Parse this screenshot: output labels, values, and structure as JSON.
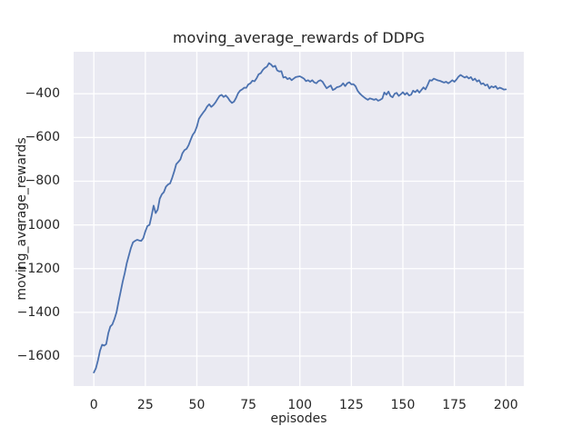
{
  "chart_data": {
    "type": "line",
    "title": "moving_average_rewards of DDPG",
    "xlabel": "episodes",
    "ylabel": "moving_average_rewards",
    "x_ticks": [
      0,
      25,
      50,
      75,
      100,
      125,
      150,
      175,
      200
    ],
    "y_ticks": [
      -400,
      -600,
      -800,
      -1000,
      -1200,
      -1400,
      -1600
    ],
    "xlim": [
      -9.8,
      208.7
    ],
    "ylim": [
      -1737,
      -208
    ],
    "grid": true,
    "legend_position": "none",
    "colors": {
      "plot_background": "#eaeaf2",
      "grid": "#ffffff",
      "line": "#4c72b0",
      "text": "#262626",
      "figure_background": "#ffffff"
    },
    "series": [
      {
        "name": "moving_average_rewards",
        "x_start": 0,
        "x_step": 1,
        "values": [
          -1675,
          -1655,
          -1620,
          -1575,
          -1548,
          -1552,
          -1545,
          -1495,
          -1465,
          -1455,
          -1430,
          -1400,
          -1350,
          -1305,
          -1260,
          -1220,
          -1175,
          -1140,
          -1105,
          -1080,
          -1073,
          -1068,
          -1071,
          -1073,
          -1060,
          -1030,
          -1005,
          -1000,
          -960,
          -912,
          -946,
          -930,
          -880,
          -860,
          -850,
          -825,
          -815,
          -810,
          -785,
          -755,
          -722,
          -712,
          -700,
          -672,
          -658,
          -652,
          -635,
          -610,
          -588,
          -575,
          -550,
          -515,
          -500,
          -487,
          -475,
          -458,
          -448,
          -460,
          -452,
          -440,
          -425,
          -410,
          -405,
          -415,
          -408,
          -418,
          -432,
          -442,
          -436,
          -420,
          -398,
          -386,
          -380,
          -372,
          -373,
          -357,
          -352,
          -340,
          -343,
          -329,
          -311,
          -306,
          -291,
          -282,
          -276,
          -260,
          -266,
          -277,
          -272,
          -293,
          -298,
          -297,
          -326,
          -323,
          -333,
          -328,
          -338,
          -331,
          -324,
          -322,
          -320,
          -325,
          -331,
          -342,
          -338,
          -345,
          -338,
          -348,
          -352,
          -342,
          -338,
          -345,
          -360,
          -375,
          -368,
          -362,
          -383,
          -378,
          -370,
          -368,
          -363,
          -352,
          -365,
          -352,
          -347,
          -357,
          -356,
          -365,
          -386,
          -398,
          -407,
          -415,
          -422,
          -428,
          -421,
          -424,
          -428,
          -424,
          -432,
          -428,
          -422,
          -394,
          -404,
          -390,
          -410,
          -416,
          -400,
          -396,
          -410,
          -402,
          -393,
          -404,
          -396,
          -408,
          -404,
          -386,
          -393,
          -383,
          -395,
          -383,
          -371,
          -380,
          -360,
          -338,
          -340,
          -331,
          -335,
          -339,
          -341,
          -345,
          -349,
          -345,
          -352,
          -346,
          -338,
          -345,
          -335,
          -322,
          -314,
          -320,
          -326,
          -321,
          -330,
          -324,
          -338,
          -331,
          -344,
          -338,
          -356,
          -352,
          -362,
          -358,
          -376,
          -366,
          -371,
          -365,
          -378,
          -372,
          -376,
          -381,
          -380
        ]
      }
    ]
  }
}
